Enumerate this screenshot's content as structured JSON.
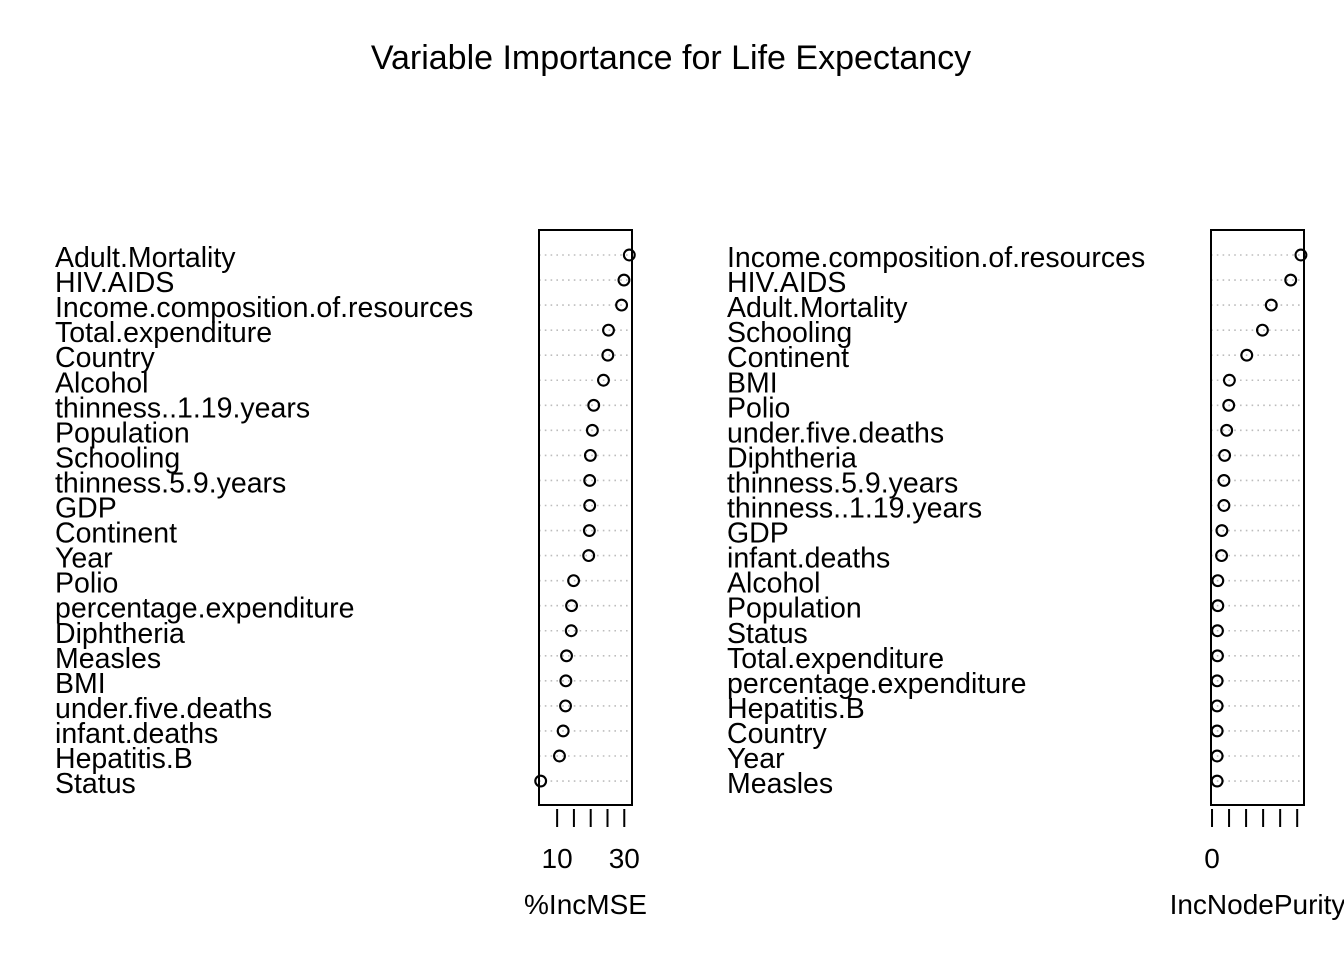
{
  "chart_data": {
    "title": "Variable Importance for Life Expectancy",
    "type": "dotchart",
    "panels": [
      {
        "xlabel": "%IncMSE",
        "xlim": [
          4.6,
          32.3
        ],
        "tick_values": [
          10,
          15,
          20,
          25,
          30
        ],
        "tick_labels": [
          "10",
          "30"
        ],
        "tick_label_values": [
          10,
          30
        ],
        "categories": [
          "Adult.Mortality",
          "HIV.AIDS",
          "Income.composition.of.resources",
          "Total.expenditure",
          "Country",
          "Alcohol",
          "thinness..1.19.years",
          "Population",
          "Schooling",
          "thinness.5.9.years",
          "GDP",
          "Continent",
          "Year",
          "Polio",
          "percentage.expenditure",
          "Diphtheria",
          "Measles",
          "BMI",
          "under.five.deaths",
          "infant.deaths",
          "Hepatitis.B",
          "Status"
        ],
        "values": [
          31.5,
          29.9,
          29.2,
          25.3,
          25.1,
          23.8,
          20.9,
          20.5,
          19.9,
          19.7,
          19.7,
          19.6,
          19.4,
          14.9,
          14.3,
          14.2,
          12.8,
          12.6,
          12.5,
          11.8,
          10.7,
          5.1
        ]
      },
      {
        "xlabel": "IncNodePurity",
        "xlim": [
          -0.3,
          27.0
        ],
        "tick_values": [
          0,
          5,
          10,
          15,
          20,
          25
        ],
        "tick_labels": [
          "0"
        ],
        "tick_label_values": [
          0
        ],
        "categories": [
          "Income.composition.of.resources",
          "HIV.AIDS",
          "Adult.Mortality",
          "Schooling",
          "Continent",
          "BMI",
          "Polio",
          "under.five.deaths",
          "Diphtheria",
          "thinness.5.9.years",
          "thinness..1.19.years",
          "GDP",
          "infant.deaths",
          "Alcohol",
          "Population",
          "Status",
          "Total.expenditure",
          "percentage.expenditure",
          "Hepatitis.B",
          "Country",
          "Year",
          "Measles"
        ],
        "values": [
          26.1,
          23.1,
          17.4,
          14.8,
          10.2,
          5.1,
          4.9,
          4.3,
          3.7,
          3.5,
          3.5,
          2.9,
          2.8,
          1.7,
          1.7,
          1.6,
          1.6,
          1.5,
          1.5,
          1.5,
          1.5,
          1.5
        ]
      }
    ]
  }
}
